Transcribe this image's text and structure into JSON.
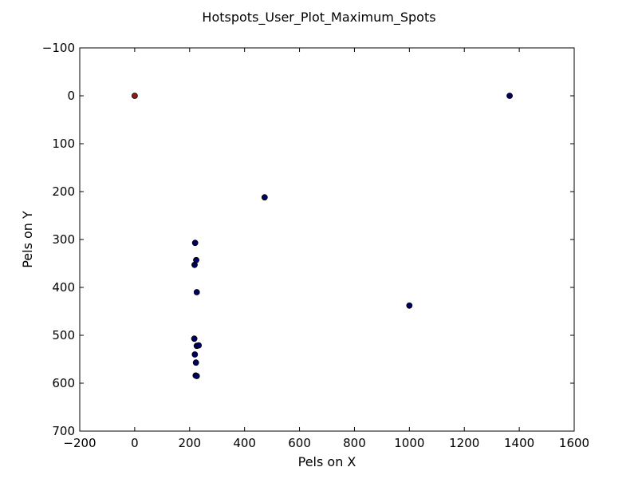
{
  "chart_data": {
    "type": "scatter",
    "title": "Hotspots_User_Plot_Maximum_Spots",
    "xlabel": "Pels on X",
    "ylabel": "Pels on Y",
    "xlim": [
      -200,
      1600
    ],
    "ylim": [
      700,
      -100
    ],
    "y_inverted": true,
    "grid": false,
    "legend": "none",
    "x_ticks": [
      -200,
      0,
      200,
      400,
      600,
      800,
      1000,
      1200,
      1400,
      1600
    ],
    "x_tick_labels": [
      "−200",
      "0",
      "200",
      "400",
      "600",
      "800",
      "1000",
      "1200",
      "1400",
      "1600"
    ],
    "y_ticks": [
      -100,
      0,
      100,
      200,
      300,
      400,
      500,
      600,
      700
    ],
    "y_tick_labels": [
      "−100",
      "0",
      "100",
      "200",
      "300",
      "400",
      "500",
      "600",
      "700"
    ],
    "points": [
      {
        "x": 0,
        "y": 0,
        "color": "#8b1a1a"
      },
      {
        "x": 1365,
        "y": 0,
        "color": "#000060"
      },
      {
        "x": 473,
        "y": 212,
        "color": "#000060"
      },
      {
        "x": 220,
        "y": 307,
        "color": "#000060"
      },
      {
        "x": 224,
        "y": 343,
        "color": "#000060"
      },
      {
        "x": 218,
        "y": 353,
        "color": "#000060"
      },
      {
        "x": 226,
        "y": 410,
        "color": "#000060"
      },
      {
        "x": 1000,
        "y": 438,
        "color": "#000060"
      },
      {
        "x": 217,
        "y": 507,
        "color": "#000060"
      },
      {
        "x": 226,
        "y": 522,
        "color": "#000060"
      },
      {
        "x": 233,
        "y": 521,
        "color": "#000060"
      },
      {
        "x": 219,
        "y": 540,
        "color": "#000060"
      },
      {
        "x": 223,
        "y": 557,
        "color": "#000060"
      },
      {
        "x": 222,
        "y": 584,
        "color": "#000060"
      },
      {
        "x": 226,
        "y": 585,
        "color": "#000060"
      }
    ]
  }
}
